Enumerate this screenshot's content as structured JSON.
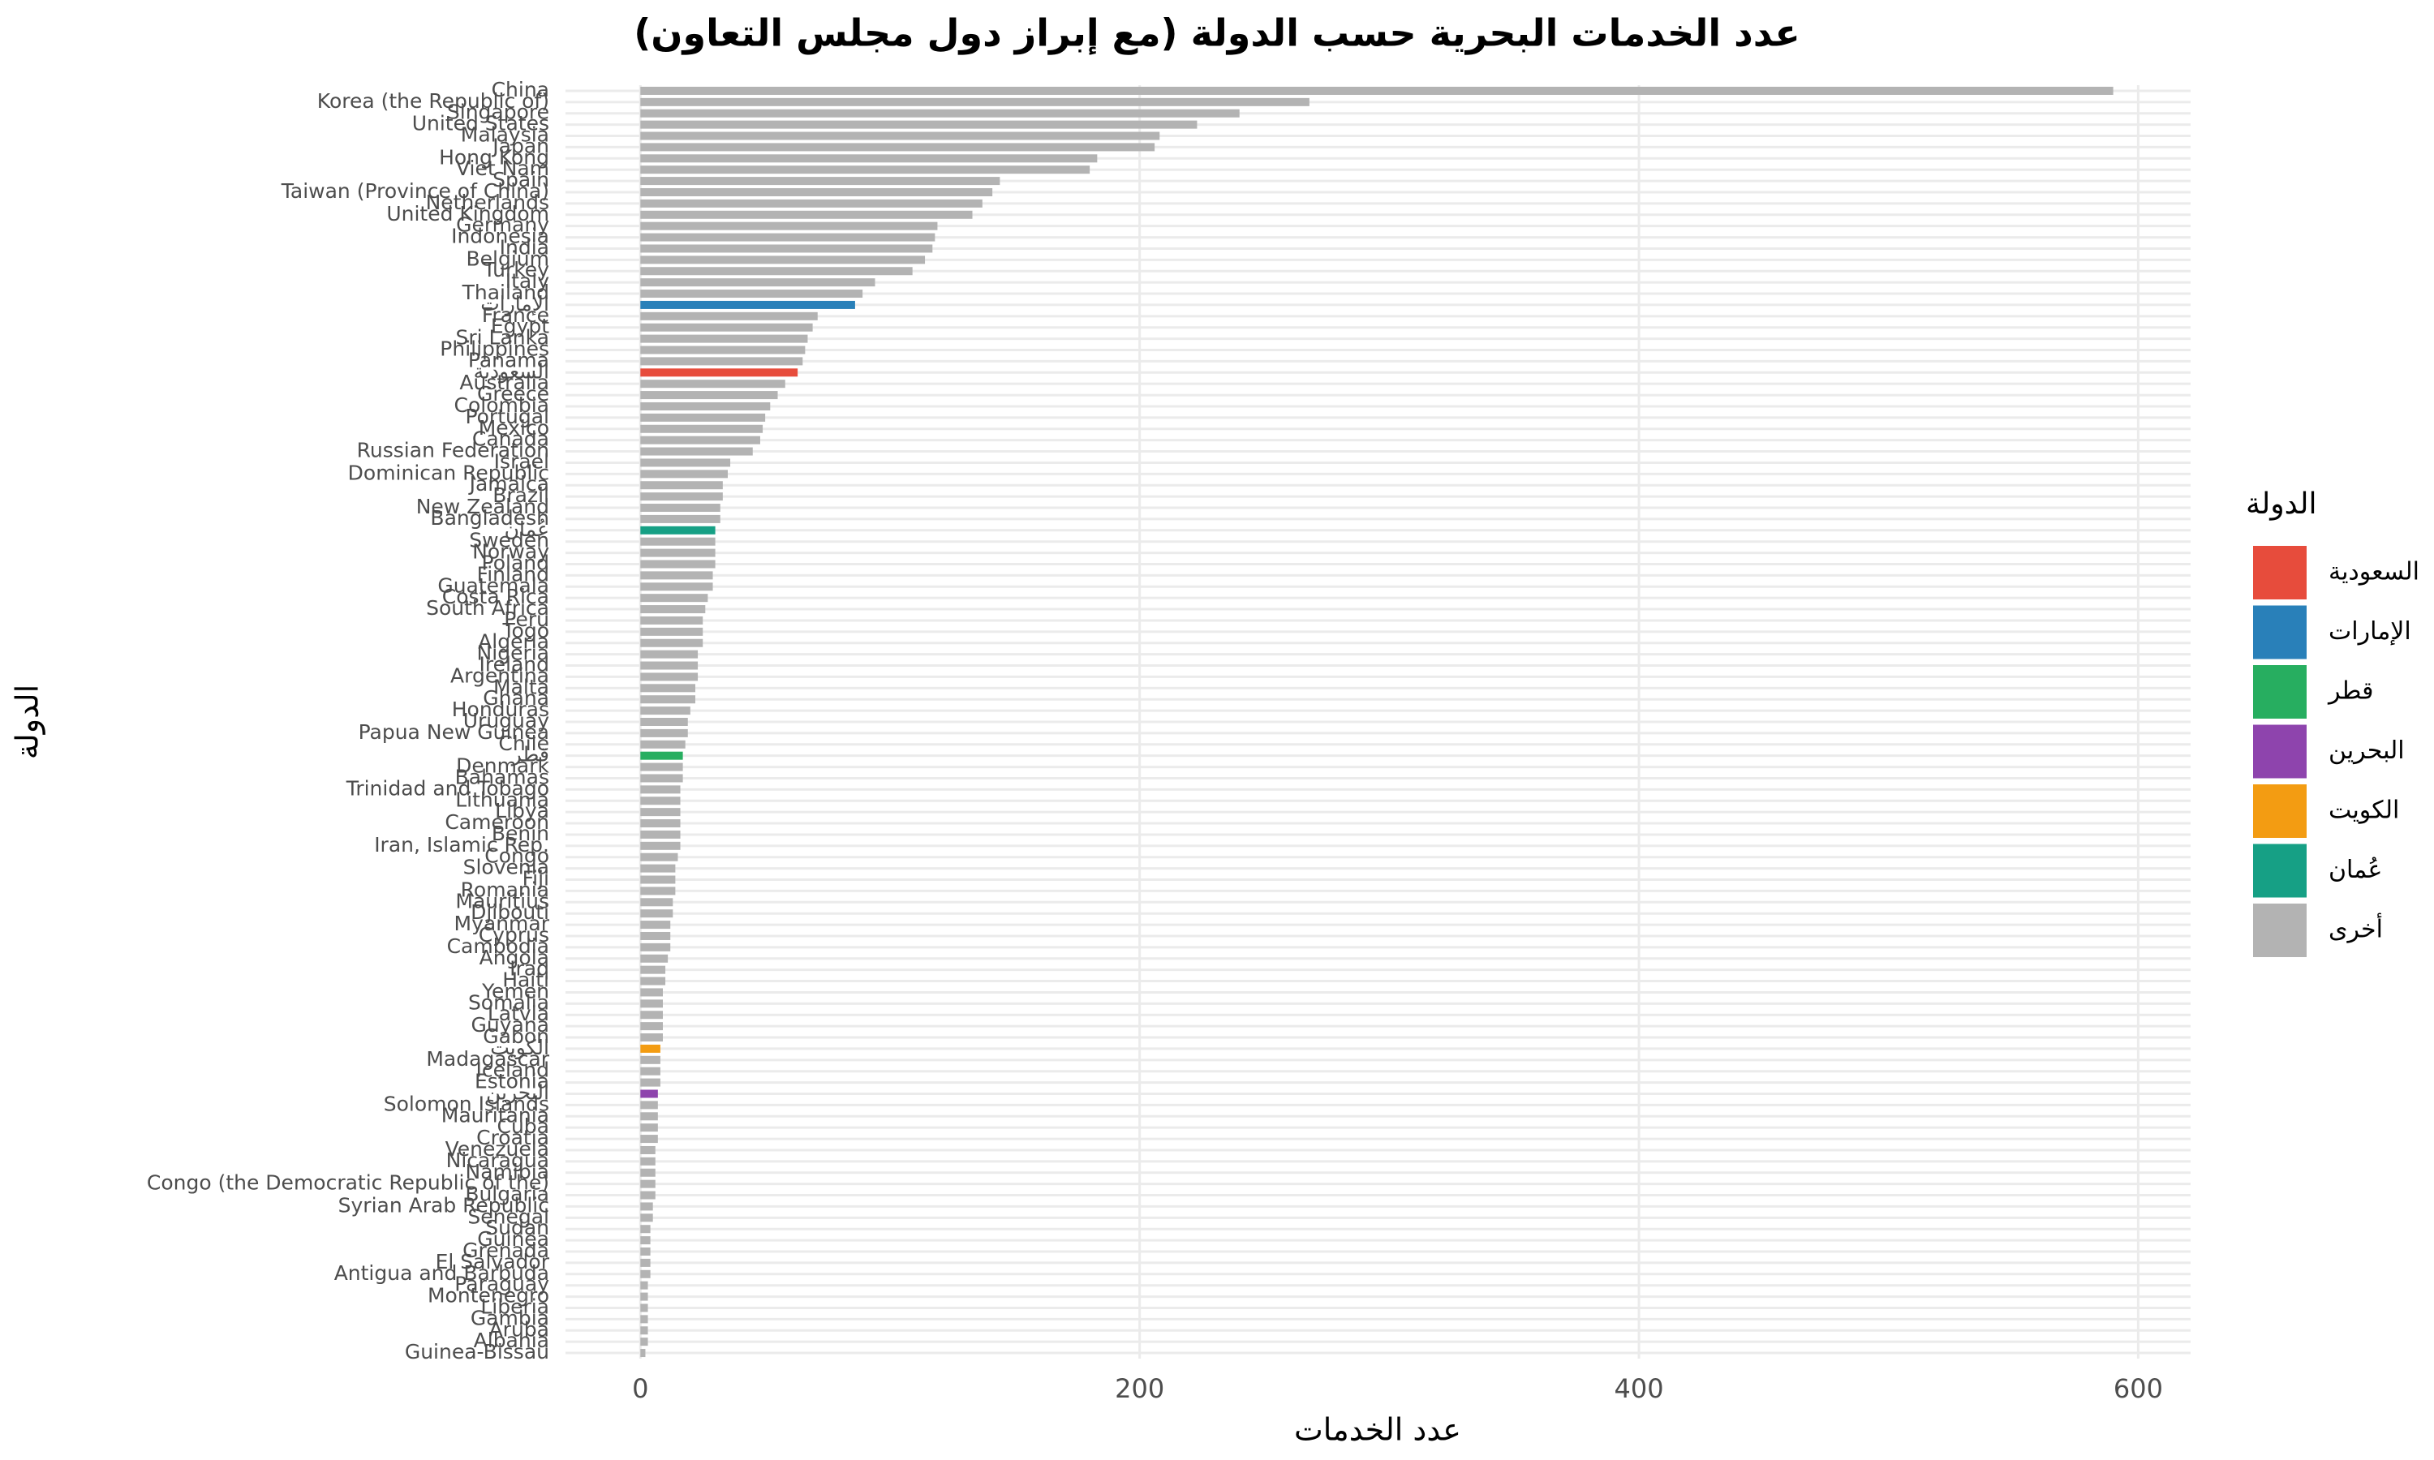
{
  "chart_data": {
    "type": "bar",
    "orientation": "horizontal",
    "title": "عدد الخدمات البحرية حسب الدولة (مع إبراز دول مجلس التعاون)",
    "x_label": "عدد الخدمات",
    "y_label": "الدولة",
    "legend_title": "الدولة",
    "xlim": [
      -30,
      621
    ],
    "xticks": [
      0,
      200,
      400,
      600
    ],
    "grid": true,
    "categories": [
      "China",
      "Korea (the Republic of)",
      "Singapore",
      "United States",
      "Malaysia",
      "Japan",
      "Hong Kong",
      "Viet Nam",
      "Spain",
      "Taiwan (Province of China)",
      "Netherlands",
      "United Kingdom",
      "Germany",
      "Indonesia",
      "India",
      "Belgium",
      "Turkey",
      "Italy",
      "Thailand",
      "الإمارات",
      "France",
      "Egypt",
      "Sri Lanka",
      "Philippines",
      "Panama",
      "السعودية",
      "Australia",
      "Greece",
      "Colombia",
      "Portugal",
      "Mexico",
      "Canada",
      "Russian Federation",
      "Israel",
      "Dominican Republic",
      "Jamaica",
      "Brazil",
      "New Zealand",
      "Bangladesh",
      "عُمان",
      "Sweden",
      "Norway",
      "Poland",
      "Finland",
      "Guatemala",
      "Costa Rica",
      "South Africa",
      "Peru",
      "Togo",
      "Algeria",
      "Nigeria",
      "Ireland",
      "Argentina",
      "Malta",
      "Ghana",
      "Honduras",
      "Uruguay",
      "Papua New Guinea",
      "Chile",
      "قطر",
      "Denmark",
      "Bahamas",
      "Trinidad and Tobago",
      "Lithuania",
      "Libya",
      "Cameroon",
      "Benin",
      "Iran, Islamic Rep.",
      "Congo",
      "Slovenia",
      "Fiji",
      "Romania",
      "Mauritius",
      "Djibouti",
      "Myanmar",
      "Cyprus",
      "Cambodia",
      "Angola",
      "Iraq",
      "Haiti",
      "Yemen",
      "Somalia",
      "Latvia",
      "Guyana",
      "Gabon",
      "الكويت",
      "Madagascar",
      "Iceland",
      "Estonia",
      "البحرين",
      "Solomon Islands",
      "Mauritania",
      "Cuba",
      "Croatia",
      "Venezuela",
      "Nicaragua",
      "Namibia",
      "Congo (the Democratic Republic of the)",
      "Bulgaria",
      "Syrian Arab Republic",
      "Senegal",
      "Sudan",
      "Guinea",
      "Grenada",
      "El Salvador",
      "Antigua and Barbuda",
      "Paraguay",
      "Montenegro",
      "Liberia",
      "Gambia",
      "Aruba",
      "Albania",
      "Guinea-Bissau"
    ],
    "series": [
      {
        "name": "السعودية",
        "color": "#e74c3c",
        "values": [
          null,
          null,
          null,
          null,
          null,
          null,
          null,
          null,
          null,
          null,
          null,
          null,
          null,
          null,
          null,
          null,
          null,
          null,
          null,
          null,
          null,
          null,
          null,
          null,
          null,
          63,
          null,
          null,
          null,
          null,
          null,
          null,
          null,
          null,
          null,
          null,
          null,
          null,
          null,
          null,
          null,
          null,
          null,
          null,
          null,
          null,
          null,
          null,
          null,
          null,
          null,
          null,
          null,
          null,
          null,
          null,
          null,
          null,
          null,
          null,
          null,
          null,
          null,
          null,
          null,
          null,
          null,
          null,
          null,
          null,
          null,
          null,
          null,
          null,
          null,
          null,
          null,
          null,
          null,
          null,
          null,
          null,
          null,
          null,
          null,
          null,
          null,
          null,
          null,
          null,
          null,
          null,
          null,
          null,
          null,
          null,
          null,
          null,
          null,
          null,
          null,
          null,
          null,
          null,
          null,
          null,
          null,
          null,
          null,
          null,
          null,
          null,
          null
        ]
      },
      {
        "name": "الإمارات",
        "color": "#2980b9",
        "values": [
          null,
          null,
          null,
          null,
          null,
          null,
          null,
          null,
          null,
          null,
          null,
          null,
          null,
          null,
          null,
          null,
          null,
          null,
          null,
          86,
          null,
          null,
          null,
          null,
          null,
          null,
          null,
          null,
          null,
          null,
          null,
          null,
          null,
          null,
          null,
          null,
          null,
          null,
          null,
          null,
          null,
          null,
          null,
          null,
          null,
          null,
          null,
          null,
          null,
          null,
          null,
          null,
          null,
          null,
          null,
          null,
          null,
          null,
          null,
          null,
          null,
          null,
          null,
          null,
          null,
          null,
          null,
          null,
          null,
          null,
          null,
          null,
          null,
          null,
          null,
          null,
          null,
          null,
          null,
          null,
          null,
          null,
          null,
          null,
          null,
          null,
          null,
          null,
          null,
          null,
          null,
          null,
          null,
          null,
          null,
          null,
          null,
          null,
          null,
          null,
          null,
          null,
          null,
          null,
          null,
          null,
          null,
          null,
          null,
          null,
          null,
          null,
          null
        ]
      },
      {
        "name": "قطر",
        "color": "#27ae60",
        "values": [
          null,
          null,
          null,
          null,
          null,
          null,
          null,
          null,
          null,
          null,
          null,
          null,
          null,
          null,
          null,
          null,
          null,
          null,
          null,
          null,
          null,
          null,
          null,
          null,
          null,
          null,
          null,
          null,
          null,
          null,
          null,
          null,
          null,
          null,
          null,
          null,
          null,
          null,
          null,
          null,
          null,
          null,
          null,
          null,
          null,
          null,
          null,
          null,
          null,
          null,
          null,
          null,
          null,
          null,
          null,
          null,
          null,
          null,
          null,
          17,
          null,
          null,
          null,
          null,
          null,
          null,
          null,
          null,
          null,
          null,
          null,
          null,
          null,
          null,
          null,
          null,
          null,
          null,
          null,
          null,
          null,
          null,
          null,
          null,
          null,
          null,
          null,
          null,
          null,
          null,
          null,
          null,
          null,
          null,
          null,
          null,
          null,
          null,
          null,
          null,
          null,
          null,
          null,
          null,
          null,
          null,
          null,
          null,
          null,
          null,
          null,
          null,
          null
        ]
      },
      {
        "name": "البحرين",
        "color": "#8e44ad",
        "values": [
          null,
          null,
          null,
          null,
          null,
          null,
          null,
          null,
          null,
          null,
          null,
          null,
          null,
          null,
          null,
          null,
          null,
          null,
          null,
          null,
          null,
          null,
          null,
          null,
          null,
          null,
          null,
          null,
          null,
          null,
          null,
          null,
          null,
          null,
          null,
          null,
          null,
          null,
          null,
          null,
          null,
          null,
          null,
          null,
          null,
          null,
          null,
          null,
          null,
          null,
          null,
          null,
          null,
          null,
          null,
          null,
          null,
          null,
          null,
          null,
          null,
          null,
          null,
          null,
          null,
          null,
          null,
          null,
          null,
          null,
          null,
          null,
          null,
          null,
          null,
          null,
          null,
          null,
          null,
          null,
          null,
          null,
          null,
          null,
          null,
          null,
          null,
          null,
          null,
          7,
          null,
          null,
          null,
          null,
          null,
          null,
          null,
          null,
          null,
          null,
          null,
          null,
          null,
          null,
          null,
          null,
          null,
          null,
          null,
          null,
          null,
          null,
          null
        ]
      },
      {
        "name": "الكويت",
        "color": "#f39c12",
        "values": [
          null,
          null,
          null,
          null,
          null,
          null,
          null,
          null,
          null,
          null,
          null,
          null,
          null,
          null,
          null,
          null,
          null,
          null,
          null,
          null,
          null,
          null,
          null,
          null,
          null,
          null,
          null,
          null,
          null,
          null,
          null,
          null,
          null,
          null,
          null,
          null,
          null,
          null,
          null,
          null,
          null,
          null,
          null,
          null,
          null,
          null,
          null,
          null,
          null,
          null,
          null,
          null,
          null,
          null,
          null,
          null,
          null,
          null,
          null,
          null,
          null,
          null,
          null,
          null,
          null,
          null,
          null,
          null,
          null,
          null,
          null,
          null,
          null,
          null,
          null,
          null,
          null,
          null,
          null,
          null,
          null,
          null,
          null,
          null,
          null,
          8,
          null,
          null,
          null,
          null,
          null,
          null,
          null,
          null,
          null,
          null,
          null,
          null,
          null,
          null,
          null,
          null,
          null,
          null,
          null,
          null,
          null,
          null,
          null,
          null,
          null,
          null,
          null
        ]
      },
      {
        "name": "عُمان",
        "color": "#16a085",
        "values": [
          null,
          null,
          null,
          null,
          null,
          null,
          null,
          null,
          null,
          null,
          null,
          null,
          null,
          null,
          null,
          null,
          null,
          null,
          null,
          null,
          null,
          null,
          null,
          null,
          null,
          null,
          null,
          null,
          null,
          null,
          null,
          null,
          null,
          null,
          null,
          null,
          null,
          null,
          null,
          30,
          null,
          null,
          null,
          null,
          null,
          null,
          null,
          null,
          null,
          null,
          null,
          null,
          null,
          null,
          null,
          null,
          null,
          null,
          null,
          null,
          null,
          null,
          null,
          null,
          null,
          null,
          null,
          null,
          null,
          null,
          null,
          null,
          null,
          null,
          null,
          null,
          null,
          null,
          null,
          null,
          null,
          null,
          null,
          null,
          null,
          null,
          null,
          null,
          null,
          null,
          null,
          null,
          null,
          null,
          null,
          null,
          null,
          null,
          null,
          null,
          null,
          null,
          null,
          null,
          null,
          null,
          null,
          null,
          null,
          null,
          null,
          null,
          null
        ]
      },
      {
        "name": "أخرى",
        "color": "#b3b3b3",
        "values": [
          590,
          268,
          240,
          223,
          208,
          206,
          183,
          180,
          144,
          141,
          137,
          133,
          119,
          118,
          117,
          114,
          109,
          94,
          89,
          null,
          71,
          69,
          67,
          66,
          65,
          null,
          58,
          55,
          52,
          50,
          49,
          48,
          45,
          36,
          35,
          33,
          33,
          32,
          32,
          null,
          30,
          30,
          30,
          29,
          29,
          27,
          26,
          25,
          25,
          25,
          23,
          23,
          23,
          22,
          22,
          20,
          19,
          19,
          18,
          null,
          17,
          17,
          16,
          16,
          16,
          16,
          16,
          16,
          15,
          14,
          14,
          14,
          13,
          13,
          12,
          12,
          12,
          11,
          10,
          10,
          9,
          9,
          9,
          9,
          9,
          null,
          8,
          8,
          8,
          null,
          7,
          7,
          7,
          7,
          6,
          6,
          6,
          6,
          6,
          5,
          5,
          4,
          4,
          4,
          4,
          4,
          3,
          3,
          3,
          3,
          3,
          3,
          2
        ]
      }
    ]
  }
}
